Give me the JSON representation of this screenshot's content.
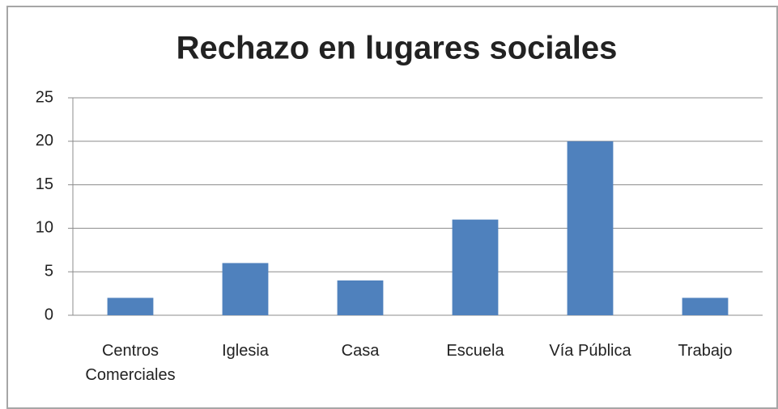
{
  "chart_data": {
    "type": "bar",
    "title": "Rechazo en lugares sociales",
    "categories": [
      "Centros Comerciales",
      "Iglesia",
      "Casa",
      "Escuela",
      "Vía Pública",
      "Trabajo"
    ],
    "values": [
      2,
      6,
      4,
      11,
      20,
      2
    ],
    "color": "#4f81bd",
    "ylim": [
      0,
      25
    ],
    "yticks": [
      0,
      5,
      10,
      15,
      20,
      25
    ],
    "grid": true
  }
}
